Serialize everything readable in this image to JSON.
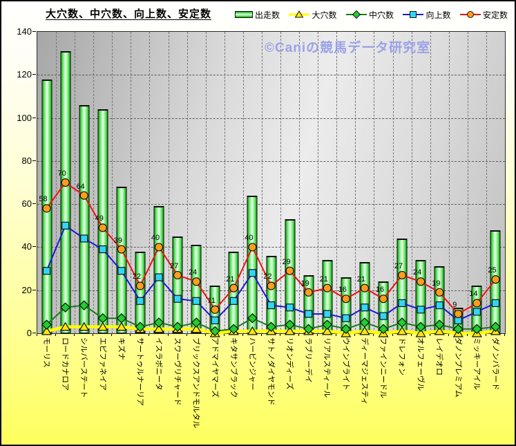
{
  "title": "大穴数、中穴数、向上数、安定数",
  "watermark": "©Caniの競馬データ研究室",
  "y_axis": {
    "min": 0,
    "max": 140,
    "step": 20,
    "tick_labels": [
      "0",
      "20",
      "40",
      "60",
      "80",
      "100",
      "120",
      "140"
    ]
  },
  "chart_data": {
    "type": "combo",
    "title": "大穴数、中穴数、向上数、安定数",
    "legend_position": "top",
    "grid": true,
    "ylim": [
      0,
      140
    ],
    "categories": [
      "モーリス",
      "ロードカナロア",
      "シルバーステート",
      "エピファネイア",
      "キズナ",
      "サートゥルナーリア",
      "イスラボニータ",
      "スワーヴリチャード",
      "ブリックスアンドモルタル",
      "アドマイヤマーズ",
      "キタサンブラック",
      "ハービンジャー",
      "サトノダイヤモンド",
      "リオンディーズ",
      "ラブリーデイ",
      "リアルスティール",
      "ウインブライト",
      "ディーマジェスティ",
      "ファインニードル",
      "ドレフォン",
      "オルフェーヴル",
      "レイデオロ",
      "ダノンプレミアム",
      "ミッキーアイル",
      "ダノンバラード"
    ],
    "series": [
      {
        "name": "出走数",
        "type": "bar",
        "color": "#57d957",
        "values": [
          118,
          131,
          106,
          104,
          68,
          38,
          59,
          45,
          41,
          22,
          38,
          64,
          36,
          53,
          27,
          34,
          26,
          33,
          24,
          44,
          34,
          31,
          12,
          22,
          48
        ]
      },
      {
        "name": "大穴数",
        "type": "line",
        "marker": "triangle",
        "line_color": "#ffff00",
        "line_width": 4.5,
        "marker_color": "#ffe414",
        "values": [
          1,
          3,
          3,
          3,
          3,
          2,
          2,
          2,
          2,
          0,
          1,
          1,
          1,
          1,
          1,
          1,
          0,
          1,
          0,
          1,
          0,
          1,
          0,
          0,
          1
        ]
      },
      {
        "name": "中穴数",
        "type": "line",
        "marker": "diamond",
        "line_color": "#1a7a1a",
        "line_width": 2,
        "marker_color": "#22cc33",
        "values": [
          4,
          12,
          13,
          7,
          7,
          3,
          5,
          3,
          5,
          1,
          2,
          7,
          3,
          4,
          2,
          4,
          2,
          5,
          2,
          5,
          3,
          4,
          2,
          2,
          3
        ]
      },
      {
        "name": "向上数",
        "type": "line",
        "marker": "square",
        "line_color": "#1919d8",
        "line_width": 2,
        "marker_color": "#33d6f2",
        "values": [
          29,
          50,
          44,
          39,
          29,
          15,
          26,
          16,
          15,
          6,
          15,
          28,
          13,
          12,
          9,
          9,
          7,
          12,
          8,
          14,
          11,
          13,
          6,
          10,
          14
        ]
      },
      {
        "name": "安定数",
        "type": "line",
        "marker": "circle",
        "line_color": "#ee1111",
        "line_width": 2,
        "marker_color": "#ff9d1e",
        "data_labels": true,
        "values": [
          58,
          70,
          64,
          49,
          39,
          22,
          40,
          27,
          24,
          11,
          21,
          40,
          22,
          29,
          19,
          21,
          16,
          21,
          16,
          27,
          24,
          19,
          9,
          14,
          25
        ]
      }
    ]
  }
}
